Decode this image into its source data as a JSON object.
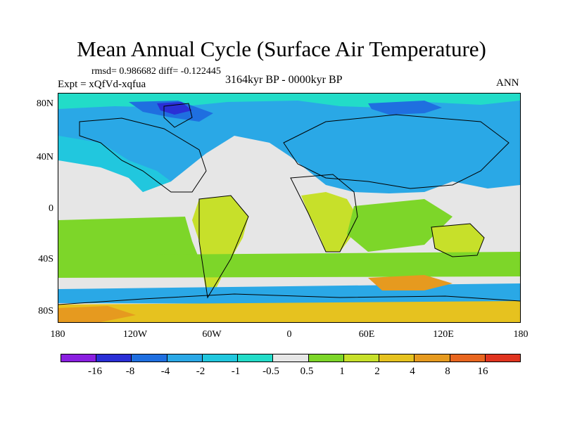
{
  "title": "Mean Annual Cycle (Surface Air Temperature)",
  "stats": "rmsd= 0.986682 diff= -0.122445",
  "expt": "Expt = xQfVd-xqfua",
  "period": "3164kyr BP - 0000kyr BP",
  "season": "ANN",
  "lat_labels": [
    "80N",
    "40N",
    "0",
    "40S",
    "80S"
  ],
  "lon_labels": [
    "180",
    "120W",
    "60W",
    "0",
    "60E",
    "120E",
    "180"
  ],
  "colorbar": {
    "colors": [
      "#8a1fe0",
      "#2a2fd6",
      "#1f6fe0",
      "#2aa8e6",
      "#21c7de",
      "#22dcc8",
      "#e6e6e6",
      "#7dd629",
      "#c7e02a",
      "#e6c21f",
      "#e69a1f",
      "#e8661f",
      "#e0341f"
    ],
    "labels": [
      "-16",
      "-8",
      "-4",
      "-2",
      "-1",
      "-0.5",
      "0.5",
      "1",
      "2",
      "4",
      "8",
      "16"
    ]
  }
}
